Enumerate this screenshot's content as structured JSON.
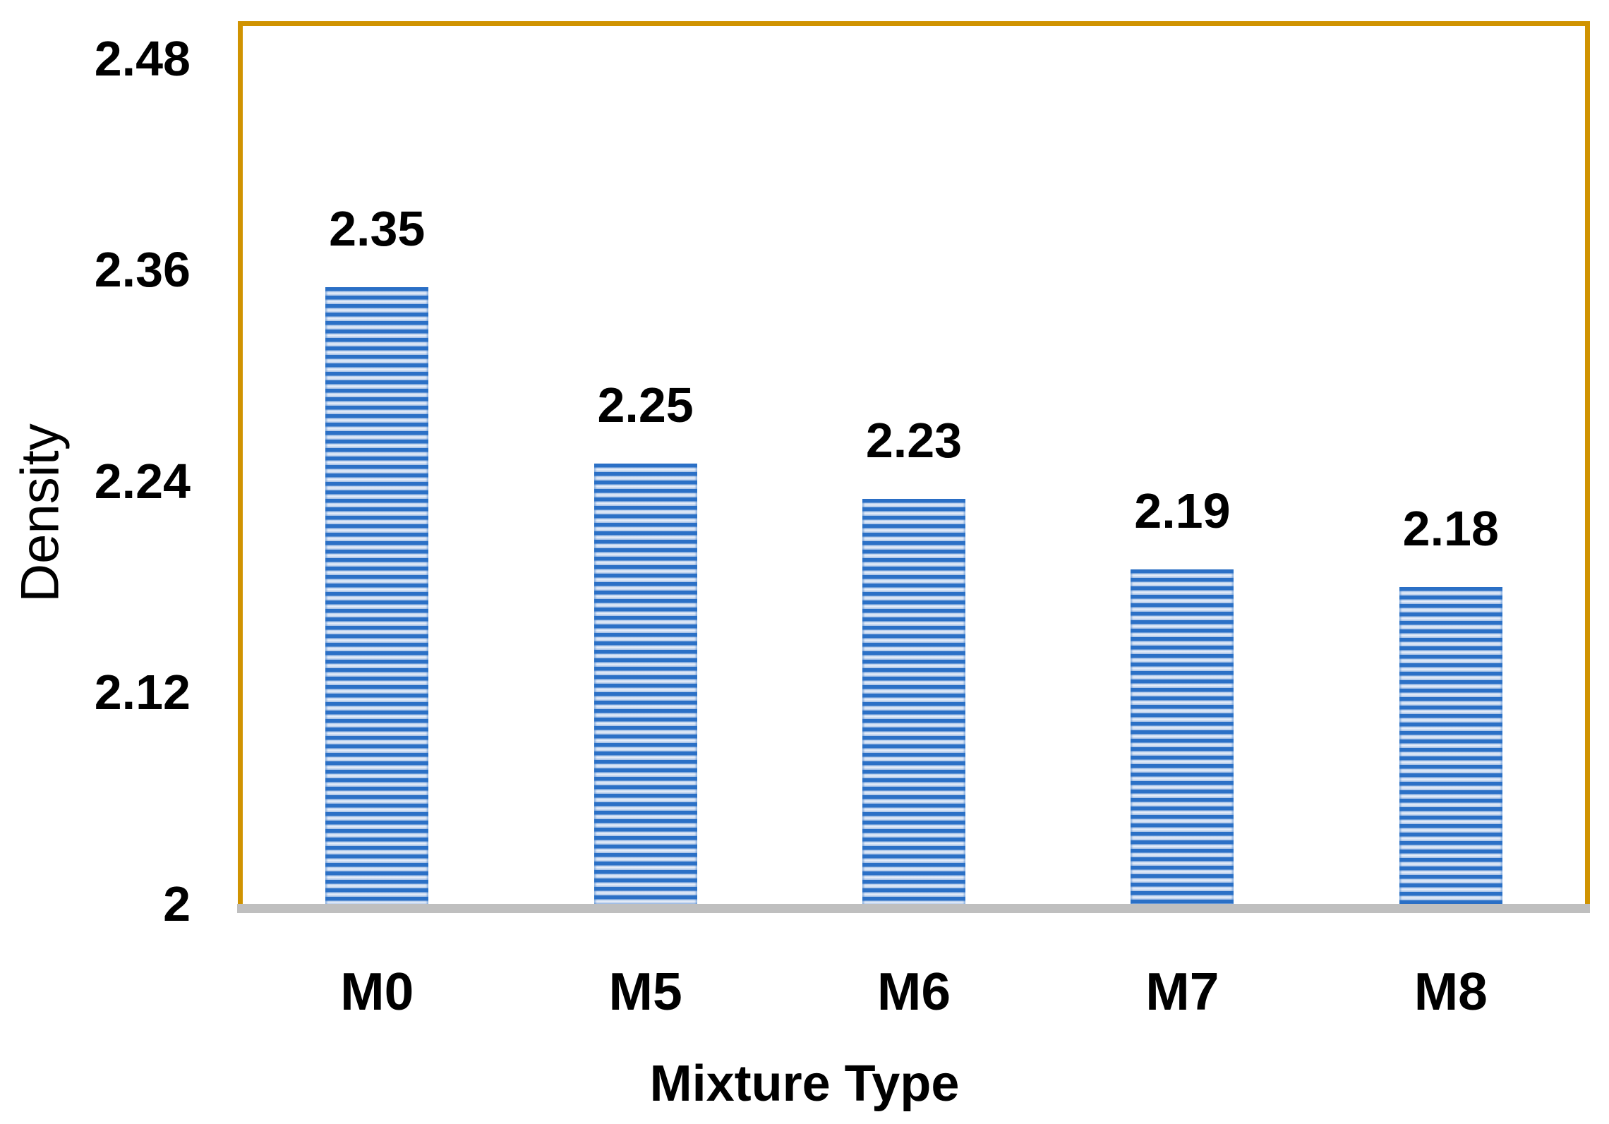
{
  "chart_data": {
    "type": "bar",
    "title": "",
    "categories": [
      "M0",
      "M5",
      "M6",
      "M7",
      "M8"
    ],
    "values": [
      2.35,
      2.25,
      2.23,
      2.19,
      2.18
    ],
    "data_labels": [
      "2.35",
      "2.25",
      "2.23",
      "2.19",
      "2.18"
    ],
    "xlabel": "Mixture Type",
    "ylabel": "Density",
    "ylim": [
      2,
      2.5
    ],
    "yticks": [
      {
        "value": 2,
        "label": "2"
      },
      {
        "value": 2.12,
        "label": "2.12"
      },
      {
        "value": 2.24,
        "label": "2.24"
      },
      {
        "value": 2.36,
        "label": "2.36"
      },
      {
        "value": 2.48,
        "label": "2.48"
      }
    ],
    "grid": false,
    "legend": "none",
    "colors": {
      "bar_stripe_dark": "#2B70C6",
      "bar_stripe_light": "#EAF0FA",
      "plot_border": "#D09301",
      "axis_line": "#BFBFBF",
      "text": "#000000"
    }
  }
}
